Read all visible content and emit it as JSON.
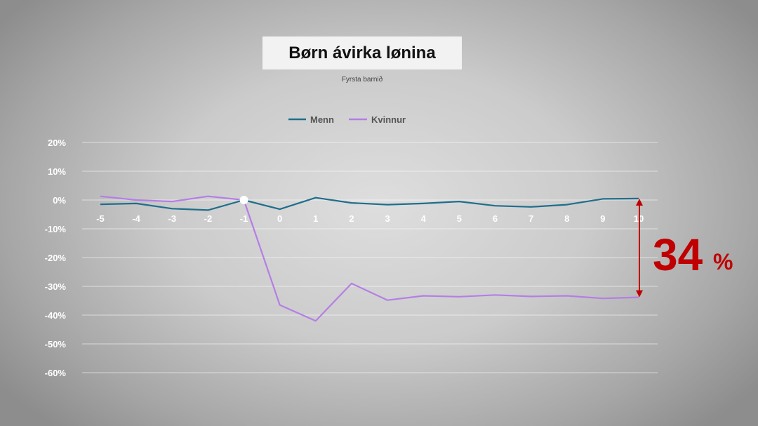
{
  "title": "Børn ávirka lønina",
  "subtitle": "Fyrsta barnið",
  "annotation": {
    "value": "34",
    "unit": "%",
    "color": "#c00000"
  },
  "colors": {
    "Menn": "#1f6e8c",
    "Kvinnur": "#b57ee6",
    "grid": "#ffffff",
    "annotation": "#c00000"
  },
  "chart_data": {
    "type": "line",
    "title": "Børn ávirka lønina",
    "subtitle": "Fyrsta barnið",
    "x": [
      -5,
      -4,
      -3,
      -2,
      -1,
      0,
      1,
      2,
      3,
      4,
      5,
      6,
      7,
      8,
      9,
      10
    ],
    "x_tick_labels": [
      "-5",
      "-4",
      "-3",
      "-2",
      "-1",
      "0",
      "1",
      "2",
      "3",
      "4",
      "5",
      "6",
      "7",
      "8",
      "9",
      "10"
    ],
    "y_tick_labels": [
      "20%",
      "10%",
      "0%",
      "-10%",
      "-20%",
      "-30%",
      "-40%",
      "-50%",
      "-60%"
    ],
    "y_ticks": [
      20,
      10,
      0,
      -10,
      -20,
      -30,
      -40,
      -50,
      -60
    ],
    "ylim": [
      -60,
      20
    ],
    "grid": true,
    "legend_position": "top-center",
    "series": [
      {
        "name": "Menn",
        "values": [
          -1.5,
          -1.2,
          -3.0,
          -3.5,
          0.0,
          -3.2,
          0.8,
          -1.0,
          -1.6,
          -1.2,
          -0.5,
          -2.0,
          -2.4,
          -1.6,
          0.4,
          0.5
        ]
      },
      {
        "name": "Kvinnur",
        "values": [
          1.3,
          0.0,
          -0.5,
          1.3,
          0.0,
          -36.5,
          -42.0,
          -29.0,
          -34.8,
          -33.3,
          -33.6,
          -33.0,
          -33.5,
          -33.3,
          -34.2,
          -33.8
        ]
      }
    ],
    "highlight_x": -1,
    "annotation_range": {
      "x": 10,
      "from": 0.5,
      "to": -33.8,
      "label": "34%"
    }
  }
}
